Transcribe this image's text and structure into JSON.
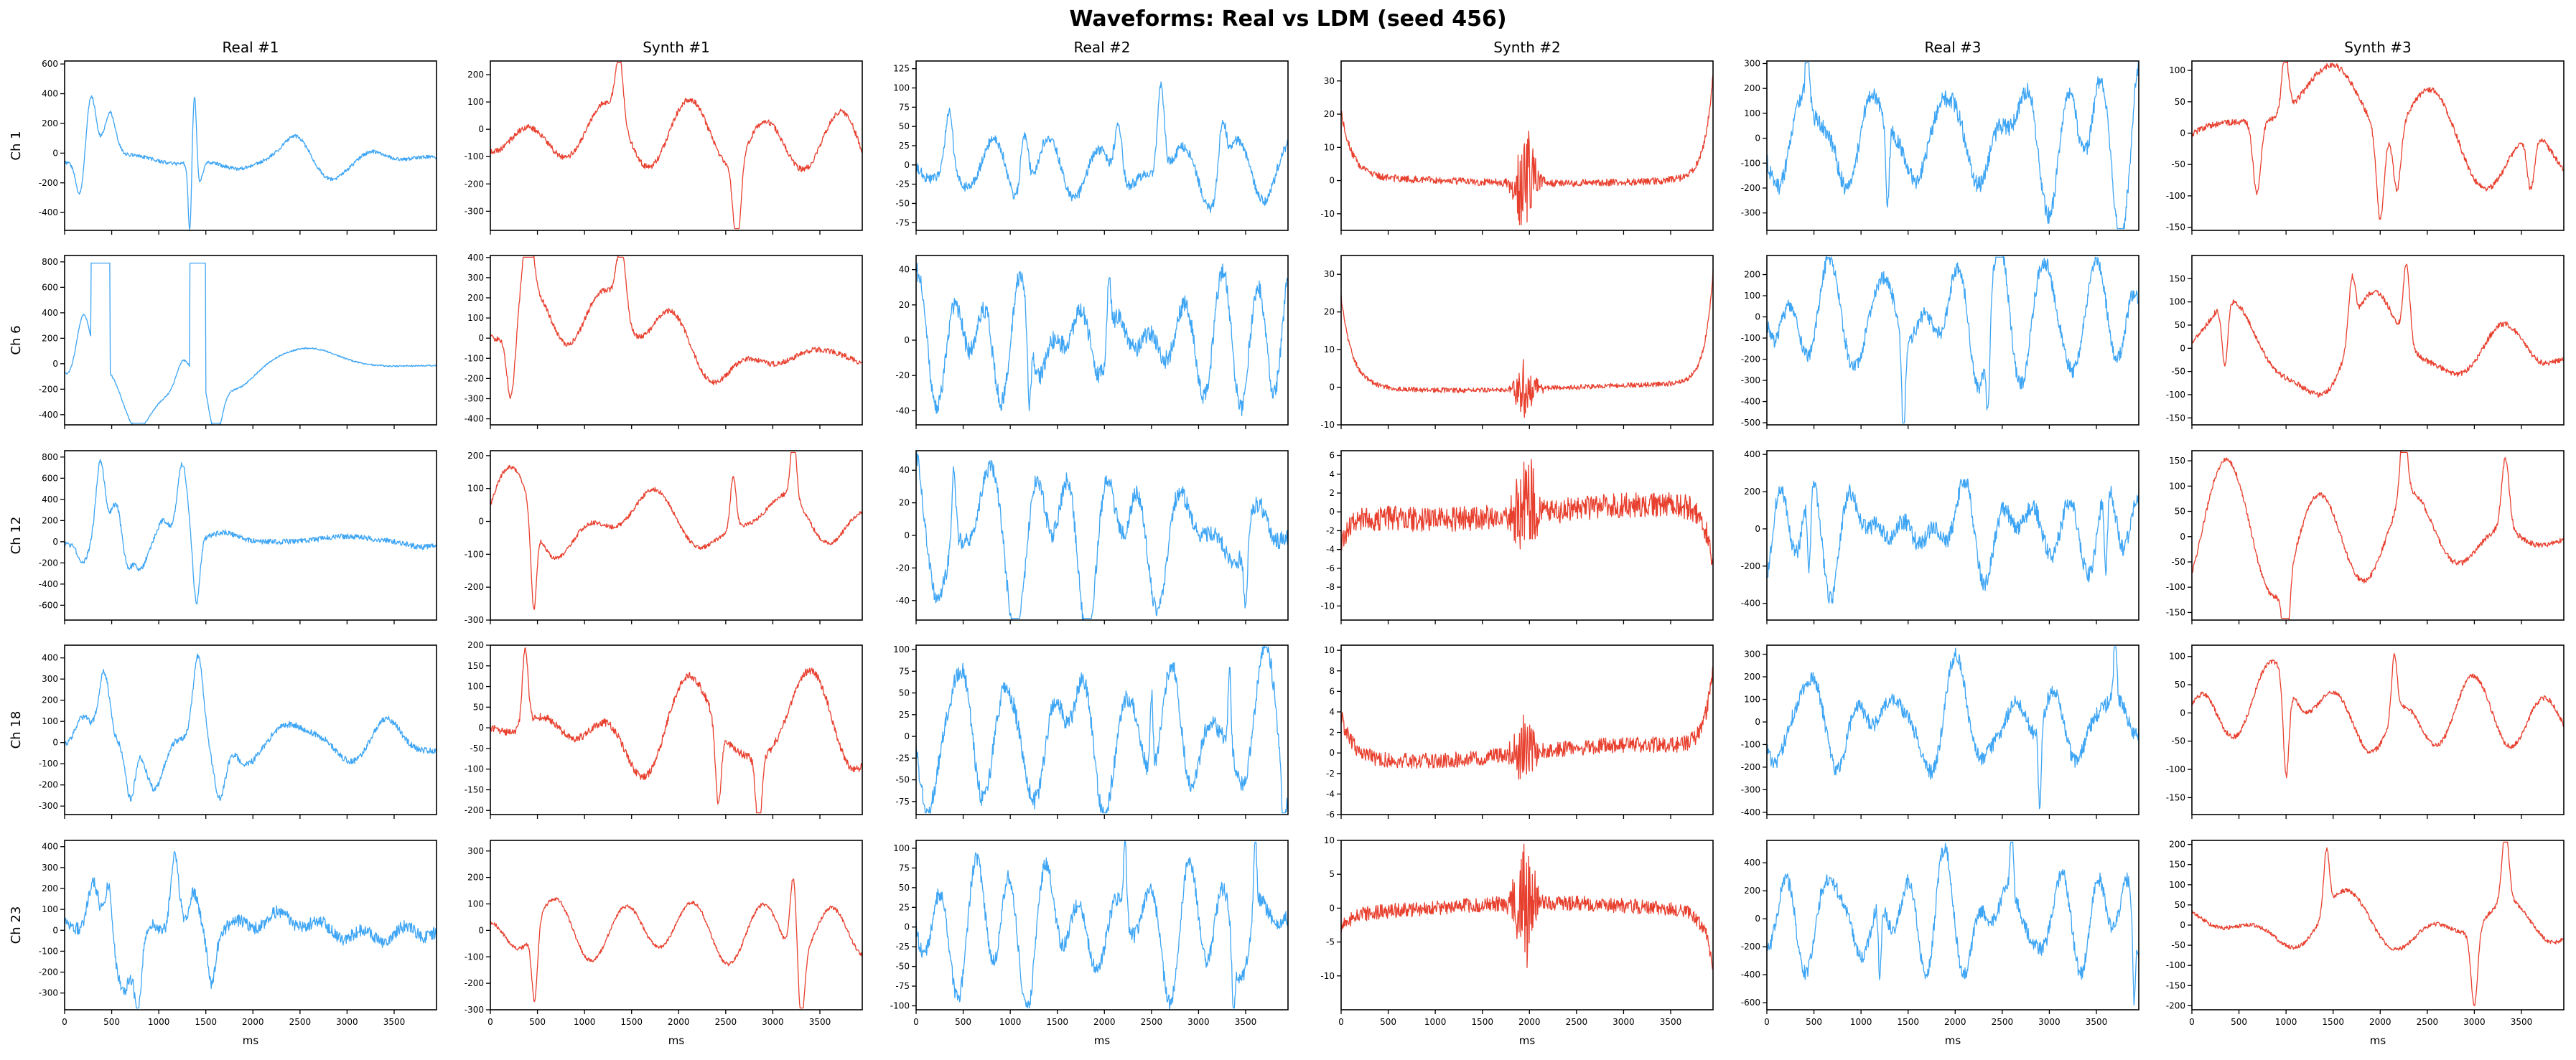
{
  "chart_data": {
    "type": "line",
    "title": "Waveforms: Real vs LDM (seed 456)",
    "columns": [
      "Real #1",
      "Synth #1",
      "Real #2",
      "Synth #2",
      "Real #3",
      "Synth #3"
    ],
    "column_kind": [
      "real",
      "synth",
      "real",
      "synth",
      "real",
      "synth"
    ],
    "rows": [
      "Ch 1",
      "Ch 6",
      "Ch 12",
      "Ch 18",
      "Ch 23"
    ],
    "xlabel": "ms",
    "xlim": [
      0,
      3950
    ],
    "xticks": [
      0,
      500,
      1000,
      1500,
      2000,
      2500,
      3000,
      3500
    ],
    "grid": false,
    "colors": {
      "real": "#3da5f4",
      "synth": "#e8402f"
    },
    "panels": [
      [
        {
          "ylim": [
            -520,
            620
          ],
          "yticks": [
            -400,
            -200,
            0,
            200,
            400,
            600
          ],
          "pattern": "real1",
          "amp": 1.0,
          "mean": 0,
          "seed": 101,
          "events": [
            {
              "t": 280,
              "v": 450,
              "w": 55
            },
            {
              "t": 170,
              "v": -250,
              "w": 45
            },
            {
              "t": 480,
              "v": 300,
              "w": 60
            },
            {
              "t": 1330,
              "v": -470,
              "w": 18
            },
            {
              "t": 1380,
              "v": 550,
              "w": 22
            },
            {
              "t": 1420,
              "v": -160,
              "w": 40
            },
            {
              "t": 2450,
              "v": 160,
              "w": 130
            },
            {
              "t": 2800,
              "v": -120,
              "w": 140
            },
            {
              "t": 3250,
              "v": 100,
              "w": 150
            }
          ]
        },
        {
          "ylim": [
            -370,
            250
          ],
          "yticks": [
            -300,
            -200,
            -100,
            0,
            100,
            200
          ],
          "pattern": "wave",
          "amp": 175,
          "mean": -30,
          "seed": 102,
          "events": [
            {
              "t": 1370,
              "v": 220,
              "w": 40
            },
            {
              "t": 2620,
              "v": -320,
              "w": 40
            }
          ]
        },
        {
          "ylim": [
            -85,
            135
          ],
          "yticks": [
            -75,
            -50,
            -25,
            0,
            25,
            50,
            75,
            100,
            125
          ],
          "pattern": "peaks",
          "amp": 45,
          "mean": -10,
          "seed": 103,
          "events": [
            {
              "t": 350,
              "v": 80,
              "w": 40
            },
            {
              "t": 1150,
              "v": 100,
              "w": 45
            },
            {
              "t": 2150,
              "v": 75,
              "w": 40
            },
            {
              "t": 2600,
              "v": 120,
              "w": 35
            },
            {
              "t": 3250,
              "v": 80,
              "w": 40
            }
          ]
        },
        {
          "ylim": [
            -15,
            36
          ],
          "yticks": [
            -10,
            0,
            10,
            20,
            30
          ],
          "pattern": "synthflat",
          "amp": 1,
          "mean": 0,
          "seed": 104,
          "startv": 20,
          "endv": 32,
          "burst": 18,
          "noise": 1.0
        },
        {
          "ylim": [
            -370,
            310
          ],
          "yticks": [
            -300,
            -200,
            -100,
            0,
            100,
            200,
            300
          ],
          "pattern": "fast",
          "amp": 200,
          "mean": 0,
          "seed": 105,
          "events": [
            {
              "t": 1280,
              "v": -340,
              "w": 18
            },
            {
              "t": 430,
              "v": 270,
              "w": 20
            }
          ]
        },
        {
          "ylim": [
            -155,
            115
          ],
          "yticks": [
            -150,
            -100,
            -50,
            0,
            50,
            100
          ],
          "pattern": "wave",
          "amp": 80,
          "mean": 10,
          "seed": 106,
          "events": [
            {
              "t": 990,
              "v": 95,
              "w": 35
            },
            {
              "t": 690,
              "v": -115,
              "w": 40
            },
            {
              "t": 2000,
              "v": -140,
              "w": 40
            },
            {
              "t": 2180,
              "v": -100,
              "w": 40
            },
            {
              "t": 3600,
              "v": -90,
              "w": 40
            }
          ]
        }
      ],
      [
        {
          "ylim": [
            -480,
            850
          ],
          "yticks": [
            -400,
            -200,
            0,
            200,
            400,
            600,
            800
          ],
          "pattern": "real6",
          "amp": 1.0,
          "mean": 0,
          "seed": 201,
          "events": []
        },
        {
          "ylim": [
            -430,
            410
          ],
          "yticks": [
            -400,
            -300,
            -200,
            -100,
            0,
            100,
            200,
            300,
            400
          ],
          "pattern": "wave",
          "amp": 230,
          "mean": 0,
          "seed": 202,
          "events": [
            {
              "t": 400,
              "v": 360,
              "w": 50
            },
            {
              "t": 1390,
              "v": 330,
              "w": 50
            },
            {
              "t": 220,
              "v": -380,
              "w": 45
            }
          ]
        },
        {
          "ylim": [
            -48,
            48
          ],
          "yticks": [
            -40,
            -20,
            0,
            20,
            40
          ],
          "pattern": "fast",
          "amp": 30,
          "mean": 0,
          "seed": 203,
          "events": [
            {
              "t": 1200,
              "v": -45,
              "w": 18
            },
            {
              "t": 2050,
              "v": 38,
              "w": 20
            }
          ]
        },
        {
          "ylim": [
            -10,
            35
          ],
          "yticks": [
            -10,
            0,
            10,
            20,
            30
          ],
          "pattern": "synthflat",
          "amp": 1,
          "mean": 0,
          "seed": 204,
          "startv": 24,
          "endv": 30,
          "burst": 8,
          "noise": 0.6
        },
        {
          "ylim": [
            -510,
            290
          ],
          "yticks": [
            -500,
            -400,
            -300,
            -200,
            -100,
            0,
            100,
            200
          ],
          "pattern": "fast",
          "amp": 200,
          "mean": 0,
          "seed": 205,
          "events": [
            {
              "t": 1450,
              "v": -450,
              "w": 20
            },
            {
              "t": 2350,
              "v": -380,
              "w": 20
            }
          ]
        },
        {
          "ylim": [
            -165,
            200
          ],
          "yticks": [
            -150,
            -100,
            -50,
            0,
            50,
            100,
            150
          ],
          "pattern": "wave",
          "amp": 100,
          "mean": 0,
          "seed": 206,
          "events": [
            {
              "t": 2280,
              "v": 170,
              "w": 35
            },
            {
              "t": 1700,
              "v": 120,
              "w": 35
            },
            {
              "t": 350,
              "v": -140,
              "w": 30
            }
          ]
        }
      ],
      [
        {
          "ylim": [
            -740,
            860
          ],
          "yticks": [
            -600,
            -400,
            -200,
            0,
            200,
            400,
            600,
            800
          ],
          "pattern": "real12",
          "amp": 1.0,
          "mean": 0,
          "seed": 301,
          "events": []
        },
        {
          "ylim": [
            -300,
            215
          ],
          "yticks": [
            -300,
            -200,
            -100,
            0,
            100,
            200
          ],
          "pattern": "wave",
          "amp": 110,
          "mean": 0,
          "seed": 302,
          "events": [
            {
              "t": 460,
              "v": -280,
              "w": 30
            },
            {
              "t": 3220,
              "v": 190,
              "w": 30
            },
            {
              "t": 2580,
              "v": 160,
              "w": 30
            }
          ]
        },
        {
          "ylim": [
            -52,
            52
          ],
          "yticks": [
            -40,
            -20,
            0,
            20,
            40
          ],
          "pattern": "fast",
          "amp": 30,
          "mean": 0,
          "seed": 303,
          "events": [
            {
              "t": 400,
              "v": 48,
              "w": 22
            },
            {
              "t": 3500,
              "v": -45,
              "w": 18
            }
          ]
        },
        {
          "ylim": [
            -11.5,
            6.5
          ],
          "yticks": [
            -10,
            -8,
            -6,
            -4,
            -2,
            0,
            2,
            4,
            6
          ],
          "pattern": "synthflat",
          "amp": 1,
          "mean": 0,
          "seed": 304,
          "startv": -3,
          "endv": -6,
          "burst": 7,
          "noise": 1.2
        },
        {
          "ylim": [
            -490,
            420
          ],
          "yticks": [
            -400,
            -200,
            0,
            200,
            400
          ],
          "pattern": "fast",
          "amp": 260,
          "mean": 0,
          "seed": 305,
          "events": [
            {
              "t": 450,
              "v": -460,
              "w": 18
            },
            {
              "t": 3600,
              "v": -460,
              "w": 18
            }
          ]
        },
        {
          "ylim": [
            -165,
            170
          ],
          "yticks": [
            -150,
            -100,
            -50,
            0,
            50,
            100,
            150
          ],
          "pattern": "wave",
          "amp": 90,
          "mean": 0,
          "seed": 306,
          "events": [
            {
              "t": 1000,
              "v": -150,
              "w": 35
            },
            {
              "t": 2250,
              "v": 150,
              "w": 35
            },
            {
              "t": 3330,
              "v": 140,
              "w": 40
            }
          ]
        }
      ],
      [
        {
          "ylim": [
            -340,
            460
          ],
          "yticks": [
            -300,
            -200,
            -100,
            0,
            100,
            200,
            300,
            400
          ],
          "pattern": "real18",
          "amp": 1.0,
          "mean": 0,
          "seed": 401,
          "events": []
        },
        {
          "ylim": [
            -210,
            200
          ],
          "yticks": [
            -200,
            -150,
            -100,
            -50,
            0,
            50,
            100,
            150,
            200
          ],
          "pattern": "wave",
          "amp": 150,
          "mean": 0,
          "seed": 402,
          "events": [
            {
              "t": 370,
              "v": 185,
              "w": 30
            },
            {
              "t": 2420,
              "v": -190,
              "w": 30
            },
            {
              "t": 2850,
              "v": -185,
              "w": 30
            }
          ]
        },
        {
          "ylim": [
            -90,
            105
          ],
          "yticks": [
            -75,
            -50,
            -25,
            0,
            25,
            50,
            75,
            100
          ],
          "pattern": "fast",
          "amp": 60,
          "mean": 0,
          "seed": 403,
          "events": [
            {
              "t": 2500,
              "v": 95,
              "w": 15
            },
            {
              "t": 3330,
              "v": 95,
              "w": 15
            },
            {
              "t": 3900,
              "v": -85,
              "w": 15
            }
          ]
        },
        {
          "ylim": [
            -6,
            10.5
          ],
          "yticks": [
            -6,
            -4,
            -2,
            0,
            2,
            4,
            6,
            8,
            10
          ],
          "pattern": "synthflat",
          "amp": 1,
          "mean": 0,
          "seed": 404,
          "startv": 4,
          "endv": 8,
          "burst": 4,
          "noise": 0.7
        },
        {
          "ylim": [
            -410,
            340
          ],
          "yticks": [
            -400,
            -300,
            -200,
            -100,
            0,
            100,
            200,
            300
          ],
          "pattern": "fast",
          "amp": 190,
          "mean": 0,
          "seed": 405,
          "events": [
            {
              "t": 3700,
              "v": 290,
              "w": 15
            },
            {
              "t": 2900,
              "v": -380,
              "w": 15
            }
          ]
        },
        {
          "ylim": [
            -180,
            120
          ],
          "yticks": [
            -150,
            -100,
            -50,
            0,
            50,
            100
          ],
          "pattern": "wave",
          "amp": 75,
          "mean": 0,
          "seed": 406,
          "events": [
            {
              "t": 1000,
              "v": -170,
              "w": 30
            },
            {
              "t": 2150,
              "v": 110,
              "w": 30
            }
          ]
        }
      ],
      [
        {
          "ylim": [
            -380,
            430
          ],
          "yticks": [
            -300,
            -200,
            -100,
            0,
            100,
            200,
            300,
            400
          ],
          "pattern": "real23",
          "amp": 1.0,
          "mean": 0,
          "seed": 501,
          "events": []
        },
        {
          "ylim": [
            -300,
            340
          ],
          "yticks": [
            -300,
            -200,
            -100,
            0,
            100,
            200,
            300
          ],
          "pattern": "wave",
          "amp": 120,
          "mean": 0,
          "seed": 502,
          "events": [
            {
              "t": 3220,
              "v": 310,
              "w": 35
            },
            {
              "t": 470,
              "v": -270,
              "w": 30
            },
            {
              "t": 3300,
              "v": -250,
              "w": 35
            }
          ]
        },
        {
          "ylim": [
            -105,
            110
          ],
          "yticks": [
            -100,
            -75,
            -50,
            -25,
            0,
            25,
            50,
            75,
            100
          ],
          "pattern": "fast",
          "amp": 55,
          "mean": 0,
          "seed": 503,
          "events": [
            {
              "t": 2220,
              "v": 100,
              "w": 15
            },
            {
              "t": 3600,
              "v": 100,
              "w": 15
            },
            {
              "t": 3370,
              "v": -95,
              "w": 15
            }
          ]
        },
        {
          "ylim": [
            -15,
            10
          ],
          "yticks": [
            -10,
            -5,
            0,
            5,
            10
          ],
          "pattern": "synthflat",
          "amp": 1,
          "mean": 0,
          "seed": 504,
          "startv": -2,
          "endv": -8,
          "burst": 9,
          "noise": 1.0
        },
        {
          "ylim": [
            -650,
            560
          ],
          "yticks": [
            -600,
            -400,
            -200,
            0,
            200,
            400
          ],
          "pattern": "fast",
          "amp": 300,
          "mean": 0,
          "seed": 505,
          "events": [
            {
              "t": 2600,
              "v": 500,
              "w": 15
            },
            {
              "t": 3900,
              "v": -600,
              "w": 15
            },
            {
              "t": 1200,
              "v": -520,
              "w": 15
            }
          ]
        },
        {
          "ylim": [
            -210,
            210
          ],
          "yticks": [
            -200,
            -150,
            -100,
            -50,
            0,
            50,
            100,
            150,
            200
          ],
          "pattern": "wave",
          "amp": 85,
          "mean": 0,
          "seed": 506,
          "events": [
            {
              "t": 3330,
              "v": 185,
              "w": 35
            },
            {
              "t": 3000,
              "v": -190,
              "w": 35
            },
            {
              "t": 1430,
              "v": 150,
              "w": 30
            }
          ]
        }
      ]
    ]
  }
}
